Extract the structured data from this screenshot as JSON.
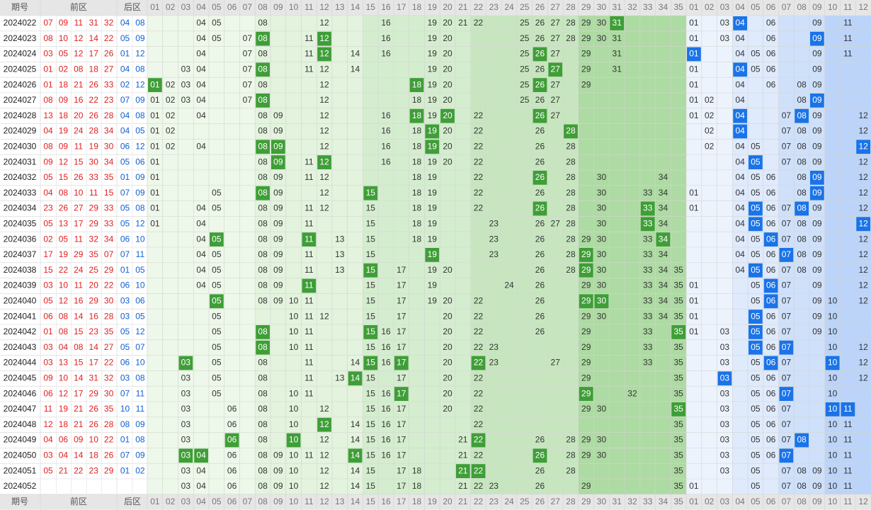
{
  "header": {
    "period": "期号",
    "front": "前区",
    "back": "后区"
  },
  "front_columns": [
    "01",
    "02",
    "03",
    "04",
    "05",
    "06",
    "07",
    "08",
    "09",
    "10",
    "11",
    "12",
    "13",
    "14",
    "15",
    "16",
    "17",
    "18",
    "19",
    "20",
    "21",
    "22",
    "23",
    "24",
    "25",
    "26",
    "27",
    "28",
    "29",
    "30",
    "31",
    "32",
    "33",
    "34",
    "35"
  ],
  "back_columns": [
    "01",
    "02",
    "03",
    "04",
    "05",
    "06",
    "07",
    "08",
    "09",
    "10",
    "11",
    "12"
  ],
  "rows": [
    {
      "period": "2024022",
      "front": [
        "07",
        "09",
        "11",
        "31",
        "32"
      ],
      "back": [
        "04",
        "08"
      ],
      "front_shown": [
        "04",
        "05",
        "08",
        "12",
        "16",
        "19",
        "20",
        "21",
        "22",
        "25",
        "26",
        "27",
        "28",
        "29",
        "30",
        "31"
      ],
      "back_shown": [
        "01",
        "03",
        "04",
        "06",
        "09",
        "11"
      ]
    },
    {
      "period": "2024023",
      "front": [
        "08",
        "10",
        "12",
        "14",
        "22"
      ],
      "back": [
        "05",
        "09"
      ],
      "front_shown": [
        "04",
        "05",
        "07",
        "08",
        "11",
        "12",
        "16",
        "19",
        "20",
        "25",
        "26",
        "27",
        "28",
        "29",
        "30",
        "31"
      ],
      "back_shown": [
        "01",
        "03",
        "04",
        "06",
        "09",
        "11"
      ]
    },
    {
      "period": "2024024",
      "front": [
        "03",
        "05",
        "12",
        "17",
        "26"
      ],
      "back": [
        "01",
        "12"
      ],
      "front_shown": [
        "04",
        "07",
        "08",
        "11",
        "12",
        "14",
        "16",
        "19",
        "20",
        "25",
        "26",
        "27",
        "29",
        "31"
      ],
      "back_shown": [
        "01",
        "04",
        "05",
        "06",
        "09",
        "11"
      ]
    },
    {
      "period": "2024025",
      "front": [
        "01",
        "02",
        "08",
        "18",
        "27"
      ],
      "back": [
        "04",
        "08"
      ],
      "front_shown": [
        "03",
        "04",
        "07",
        "08",
        "11",
        "12",
        "14",
        "19",
        "20",
        "25",
        "26",
        "27",
        "29",
        "31"
      ],
      "back_shown": [
        "01",
        "04",
        "05",
        "06",
        "09"
      ]
    },
    {
      "period": "2024026",
      "front": [
        "01",
        "18",
        "21",
        "26",
        "33"
      ],
      "back": [
        "02",
        "12"
      ],
      "front_shown": [
        "01",
        "02",
        "03",
        "04",
        "07",
        "08",
        "12",
        "18",
        "19",
        "20",
        "25",
        "26",
        "27",
        "29"
      ],
      "back_shown": [
        "01",
        "04",
        "06",
        "08",
        "09"
      ]
    },
    {
      "period": "2024027",
      "front": [
        "08",
        "09",
        "16",
        "22",
        "23"
      ],
      "back": [
        "07",
        "09"
      ],
      "front_shown": [
        "01",
        "02",
        "03",
        "04",
        "07",
        "08",
        "12",
        "18",
        "19",
        "20",
        "25",
        "26",
        "27"
      ],
      "back_shown": [
        "01",
        "02",
        "04",
        "08",
        "09"
      ]
    },
    {
      "period": "2024028",
      "front": [
        "13",
        "18",
        "20",
        "26",
        "28"
      ],
      "back": [
        "04",
        "08"
      ],
      "front_shown": [
        "01",
        "02",
        "04",
        "08",
        "09",
        "12",
        "16",
        "18",
        "19",
        "20",
        "22",
        "26",
        "27"
      ],
      "back_shown": [
        "01",
        "02",
        "04",
        "07",
        "08",
        "09",
        "12"
      ]
    },
    {
      "period": "2024029",
      "front": [
        "04",
        "19",
        "24",
        "28",
        "34"
      ],
      "back": [
        "04",
        "05"
      ],
      "front_shown": [
        "01",
        "02",
        "08",
        "09",
        "12",
        "16",
        "18",
        "19",
        "20",
        "22",
        "26",
        "28"
      ],
      "back_shown": [
        "02",
        "04",
        "07",
        "08",
        "09",
        "12"
      ]
    },
    {
      "period": "2024030",
      "front": [
        "08",
        "09",
        "11",
        "19",
        "30"
      ],
      "back": [
        "06",
        "12"
      ],
      "front_shown": [
        "01",
        "02",
        "04",
        "08",
        "09",
        "12",
        "16",
        "18",
        "19",
        "20",
        "22",
        "26",
        "28"
      ],
      "back_shown": [
        "02",
        "04",
        "05",
        "07",
        "08",
        "09",
        "12"
      ]
    },
    {
      "period": "2024031",
      "front": [
        "09",
        "12",
        "15",
        "30",
        "34"
      ],
      "back": [
        "05",
        "06"
      ],
      "front_shown": [
        "01",
        "08",
        "09",
        "11",
        "12",
        "16",
        "18",
        "19",
        "20",
        "22",
        "26",
        "28"
      ],
      "back_shown": [
        "04",
        "05",
        "07",
        "08",
        "09",
        "12"
      ]
    },
    {
      "period": "2024032",
      "front": [
        "05",
        "15",
        "26",
        "33",
        "35"
      ],
      "back": [
        "01",
        "09"
      ],
      "front_shown": [
        "01",
        "08",
        "09",
        "11",
        "12",
        "18",
        "19",
        "22",
        "26",
        "28",
        "30",
        "34"
      ],
      "back_shown": [
        "04",
        "05",
        "06",
        "08",
        "09",
        "12"
      ]
    },
    {
      "period": "2024033",
      "front": [
        "04",
        "08",
        "10",
        "11",
        "15"
      ],
      "back": [
        "07",
        "09"
      ],
      "front_shown": [
        "01",
        "05",
        "08",
        "09",
        "12",
        "15",
        "18",
        "19",
        "22",
        "26",
        "28",
        "30",
        "33",
        "34"
      ],
      "back_shown": [
        "01",
        "04",
        "05",
        "06",
        "08",
        "09",
        "12"
      ]
    },
    {
      "period": "2024034",
      "front": [
        "23",
        "26",
        "27",
        "29",
        "33"
      ],
      "back": [
        "05",
        "08"
      ],
      "front_shown": [
        "01",
        "04",
        "05",
        "08",
        "09",
        "11",
        "12",
        "15",
        "18",
        "19",
        "22",
        "26",
        "28",
        "30",
        "33",
        "34"
      ],
      "back_shown": [
        "01",
        "04",
        "05",
        "06",
        "07",
        "08",
        "09",
        "12"
      ]
    },
    {
      "period": "2024035",
      "front": [
        "05",
        "13",
        "17",
        "29",
        "33"
      ],
      "back": [
        "05",
        "12"
      ],
      "front_shown": [
        "01",
        "04",
        "08",
        "09",
        "11",
        "15",
        "18",
        "19",
        "23",
        "26",
        "27",
        "28",
        "30",
        "33",
        "34"
      ],
      "back_shown": [
        "04",
        "05",
        "06",
        "07",
        "08",
        "09",
        "12"
      ]
    },
    {
      "period": "2024036",
      "front": [
        "02",
        "05",
        "11",
        "32",
        "34"
      ],
      "back": [
        "06",
        "10"
      ],
      "front_shown": [
        "04",
        "05",
        "08",
        "09",
        "11",
        "13",
        "15",
        "18",
        "19",
        "23",
        "26",
        "28",
        "29",
        "30",
        "33",
        "34"
      ],
      "back_shown": [
        "04",
        "05",
        "06",
        "07",
        "08",
        "09",
        "12"
      ]
    },
    {
      "period": "2024037",
      "front": [
        "17",
        "19",
        "29",
        "35",
        "07"
      ],
      "back": [
        "07",
        "11"
      ],
      "front_shown": [
        "04",
        "05",
        "08",
        "09",
        "11",
        "13",
        "15",
        "19",
        "23",
        "26",
        "28",
        "29",
        "30",
        "33",
        "34"
      ],
      "back_shown": [
        "04",
        "05",
        "06",
        "07",
        "08",
        "09",
        "12"
      ]
    },
    {
      "period": "2024038",
      "front": [
        "15",
        "22",
        "24",
        "25",
        "29"
      ],
      "back": [
        "01",
        "05"
      ],
      "front_shown": [
        "04",
        "05",
        "08",
        "09",
        "11",
        "13",
        "15",
        "17",
        "19",
        "20",
        "26",
        "28",
        "29",
        "30",
        "33",
        "34",
        "35"
      ],
      "back_shown": [
        "04",
        "05",
        "06",
        "07",
        "08",
        "09",
        "12"
      ]
    },
    {
      "period": "2024039",
      "front": [
        "03",
        "10",
        "11",
        "20",
        "22"
      ],
      "back": [
        "06",
        "10"
      ],
      "front_shown": [
        "04",
        "05",
        "08",
        "09",
        "11",
        "15",
        "17",
        "19",
        "24",
        "26",
        "29",
        "30",
        "33",
        "34",
        "35"
      ],
      "back_shown": [
        "01",
        "05",
        "06",
        "07",
        "09",
        "12"
      ]
    },
    {
      "period": "2024040",
      "front": [
        "05",
        "12",
        "16",
        "29",
        "30"
      ],
      "back": [
        "03",
        "06"
      ],
      "front_shown": [
        "05",
        "08",
        "09",
        "10",
        "11",
        "15",
        "17",
        "19",
        "20",
        "22",
        "26",
        "29",
        "30",
        "33",
        "34",
        "35"
      ],
      "back_shown": [
        "01",
        "05",
        "06",
        "07",
        "09",
        "10",
        "12"
      ]
    },
    {
      "period": "2024041",
      "front": [
        "06",
        "08",
        "14",
        "16",
        "28"
      ],
      "back": [
        "03",
        "05"
      ],
      "front_shown": [
        "05",
        "10",
        "11",
        "12",
        "15",
        "17",
        "20",
        "22",
        "26",
        "29",
        "30",
        "33",
        "34",
        "35"
      ],
      "back_shown": [
        "01",
        "05",
        "06",
        "07",
        "09",
        "10"
      ]
    },
    {
      "period": "2024042",
      "front": [
        "01",
        "08",
        "15",
        "23",
        "35"
      ],
      "back": [
        "05",
        "12"
      ],
      "front_shown": [
        "05",
        "08",
        "10",
        "11",
        "15",
        "16",
        "17",
        "20",
        "22",
        "26",
        "29",
        "33",
        "35"
      ],
      "back_shown": [
        "01",
        "03",
        "05",
        "06",
        "07",
        "09",
        "10"
      ]
    },
    {
      "period": "2024043",
      "front": [
        "03",
        "04",
        "08",
        "14",
        "27"
      ],
      "back": [
        "05",
        "07"
      ],
      "front_shown": [
        "05",
        "08",
        "10",
        "11",
        "15",
        "16",
        "17",
        "20",
        "22",
        "23",
        "29",
        "33",
        "35"
      ],
      "back_shown": [
        "03",
        "05",
        "06",
        "07",
        "10",
        "12"
      ]
    },
    {
      "period": "2024044",
      "front": [
        "03",
        "13",
        "15",
        "17",
        "22"
      ],
      "back": [
        "06",
        "10"
      ],
      "front_shown": [
        "03",
        "05",
        "08",
        "11",
        "14",
        "15",
        "16",
        "17",
        "20",
        "22",
        "23",
        "27",
        "29",
        "33",
        "35"
      ],
      "back_shown": [
        "03",
        "05",
        "06",
        "07",
        "10",
        "12"
      ]
    },
    {
      "period": "2024045",
      "front": [
        "09",
        "10",
        "14",
        "31",
        "32"
      ],
      "back": [
        "03",
        "08"
      ],
      "front_shown": [
        "03",
        "05",
        "08",
        "11",
        "13",
        "14",
        "15",
        "17",
        "20",
        "22",
        "29",
        "35"
      ],
      "back_shown": [
        "03",
        "05",
        "06",
        "07",
        "10",
        "12"
      ]
    },
    {
      "period": "2024046",
      "front": [
        "06",
        "12",
        "17",
        "29",
        "30"
      ],
      "back": [
        "07",
        "11"
      ],
      "front_shown": [
        "03",
        "05",
        "08",
        "10",
        "11",
        "15",
        "16",
        "17",
        "20",
        "22",
        "29",
        "32",
        "35"
      ],
      "back_shown": [
        "03",
        "05",
        "06",
        "07",
        "10"
      ]
    },
    {
      "period": "2024047",
      "front": [
        "11",
        "19",
        "21",
        "26",
        "35"
      ],
      "back": [
        "10",
        "11"
      ],
      "front_shown": [
        "03",
        "06",
        "08",
        "10",
        "12",
        "15",
        "16",
        "17",
        "20",
        "22",
        "29",
        "30",
        "35"
      ],
      "back_shown": [
        "03",
        "05",
        "06",
        "07",
        "10",
        "11"
      ]
    },
    {
      "period": "2024048",
      "front": [
        "12",
        "18",
        "21",
        "26",
        "28"
      ],
      "back": [
        "08",
        "09"
      ],
      "front_shown": [
        "03",
        "06",
        "08",
        "10",
        "12",
        "14",
        "15",
        "16",
        "17",
        "22",
        "35"
      ],
      "back_shown": [
        "03",
        "05",
        "06",
        "07",
        "10",
        "11"
      ]
    },
    {
      "period": "2024049",
      "front": [
        "04",
        "06",
        "09",
        "10",
        "22"
      ],
      "back": [
        "01",
        "08"
      ],
      "front_shown": [
        "03",
        "06",
        "08",
        "10",
        "12",
        "14",
        "15",
        "16",
        "17",
        "21",
        "22",
        "26",
        "28",
        "29",
        "30",
        "35"
      ],
      "back_shown": [
        "03",
        "05",
        "06",
        "07",
        "08",
        "10",
        "11"
      ]
    },
    {
      "period": "2024050",
      "front": [
        "03",
        "04",
        "14",
        "18",
        "26"
      ],
      "back": [
        "07",
        "09"
      ],
      "front_shown": [
        "03",
        "04",
        "06",
        "08",
        "09",
        "10",
        "11",
        "12",
        "14",
        "15",
        "16",
        "17",
        "21",
        "22",
        "26",
        "28",
        "29",
        "30",
        "35"
      ],
      "back_shown": [
        "03",
        "05",
        "06",
        "07",
        "10",
        "11"
      ]
    },
    {
      "period": "2024051",
      "front": [
        "05",
        "21",
        "22",
        "23",
        "29"
      ],
      "back": [
        "01",
        "02"
      ],
      "front_shown": [
        "03",
        "04",
        "06",
        "08",
        "09",
        "10",
        "12",
        "14",
        "15",
        "17",
        "18",
        "21",
        "22",
        "26",
        "28",
        "35"
      ],
      "back_shown": [
        "03",
        "05",
        "07",
        "08",
        "09",
        "10",
        "11"
      ]
    },
    {
      "period": "2024052",
      "front": [],
      "back": [],
      "front_shown": [
        "03",
        "04",
        "06",
        "08",
        "09",
        "10",
        "12",
        "14",
        "15",
        "17",
        "18",
        "21",
        "22",
        "23",
        "26",
        "29",
        "35"
      ],
      "back_shown": [
        "01",
        "05",
        "07",
        "08",
        "09",
        "10",
        "11"
      ]
    }
  ]
}
